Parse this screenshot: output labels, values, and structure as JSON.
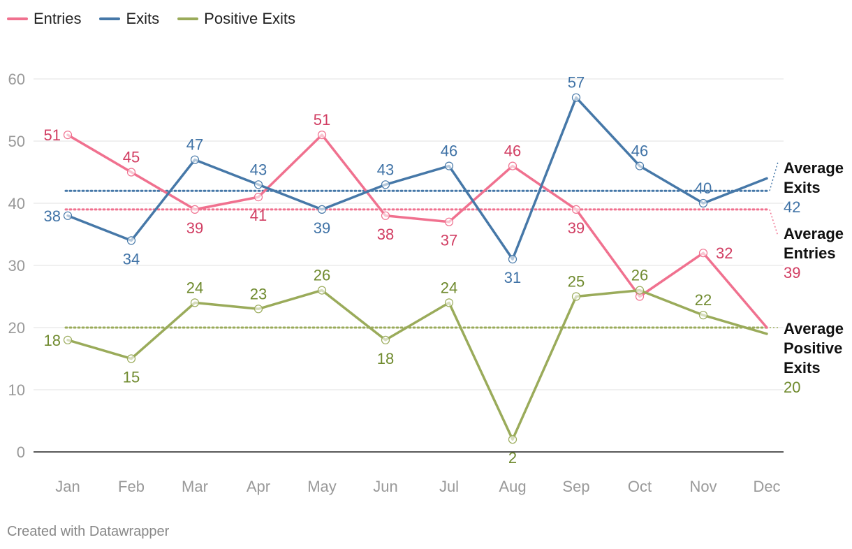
{
  "chart_data": {
    "type": "line",
    "title": "",
    "xlabel": "",
    "ylabel": "",
    "categories": [
      "Jan",
      "Feb",
      "Mar",
      "Apr",
      "May",
      "Jun",
      "Jul",
      "Aug",
      "Sep",
      "Oct",
      "Nov",
      "Dec"
    ],
    "ylim": [
      0,
      60
    ],
    "yticks": [
      0,
      10,
      20,
      30,
      40,
      50,
      60
    ],
    "grid": true,
    "legend_position": "top-left",
    "series": [
      {
        "key": "entries",
        "name": "Entries",
        "color": "#f0718f",
        "label_color": "#d13d62",
        "values": [
          51,
          45,
          39,
          41,
          51,
          38,
          37,
          46,
          39,
          25,
          32,
          20
        ]
      },
      {
        "key": "exits",
        "name": "Exits",
        "color": "#4678a8",
        "label_color": "#3f72a6",
        "values": [
          38,
          34,
          47,
          43,
          39,
          43,
          46,
          31,
          57,
          46,
          40,
          44
        ]
      },
      {
        "key": "positive",
        "name": "Positive Exits",
        "color": "#9aab5a",
        "label_color": "#6f8a2e",
        "values": [
          18,
          15,
          24,
          23,
          26,
          18,
          24,
          2,
          25,
          26,
          22,
          19
        ]
      }
    ],
    "data_labels": {
      "entries": [
        {
          "i": 0,
          "text": "51",
          "pos": "left"
        },
        {
          "i": 1,
          "text": "45",
          "pos": "above"
        },
        {
          "i": 2,
          "text": "39",
          "pos": "below"
        },
        {
          "i": 3,
          "text": "41",
          "pos": "below"
        },
        {
          "i": 4,
          "text": "51",
          "pos": "above"
        },
        {
          "i": 5,
          "text": "38",
          "pos": "below"
        },
        {
          "i": 6,
          "text": "37",
          "pos": "below"
        },
        {
          "i": 7,
          "text": "46",
          "pos": "above"
        },
        {
          "i": 8,
          "text": "39",
          "pos": "below"
        },
        {
          "i": 10,
          "text": "32",
          "pos": "right"
        }
      ],
      "exits": [
        {
          "i": 0,
          "text": "38",
          "pos": "left"
        },
        {
          "i": 1,
          "text": "34",
          "pos": "below"
        },
        {
          "i": 2,
          "text": "47",
          "pos": "above"
        },
        {
          "i": 3,
          "text": "43",
          "pos": "above"
        },
        {
          "i": 4,
          "text": "39",
          "pos": "below"
        },
        {
          "i": 5,
          "text": "43",
          "pos": "above"
        },
        {
          "i": 6,
          "text": "46",
          "pos": "above"
        },
        {
          "i": 7,
          "text": "31",
          "pos": "below"
        },
        {
          "i": 8,
          "text": "57",
          "pos": "above"
        },
        {
          "i": 9,
          "text": "46",
          "pos": "above"
        },
        {
          "i": 10,
          "text": "40",
          "pos": "above"
        }
      ],
      "positive": [
        {
          "i": 0,
          "text": "18",
          "pos": "left"
        },
        {
          "i": 1,
          "text": "15",
          "pos": "below"
        },
        {
          "i": 2,
          "text": "24",
          "pos": "above"
        },
        {
          "i": 3,
          "text": "23",
          "pos": "above"
        },
        {
          "i": 4,
          "text": "26",
          "pos": "above"
        },
        {
          "i": 5,
          "text": "18",
          "pos": "below"
        },
        {
          "i": 6,
          "text": "24",
          "pos": "above"
        },
        {
          "i": 7,
          "text": "2",
          "pos": "below"
        },
        {
          "i": 8,
          "text": "25",
          "pos": "above"
        },
        {
          "i": 9,
          "text": "26",
          "pos": "above"
        },
        {
          "i": 10,
          "text": "22",
          "pos": "above"
        }
      ]
    },
    "averages": [
      {
        "key": "exits",
        "lines": [
          "Average",
          "Exits"
        ],
        "value": 42,
        "value_text": "42",
        "color": "#4678a8",
        "text_color": "#3f72a6"
      },
      {
        "key": "entries",
        "lines": [
          "Average",
          "Entries"
        ],
        "value": 39,
        "value_text": "39",
        "color": "#f0718f",
        "text_color": "#d13d62"
      },
      {
        "key": "positive",
        "lines": [
          "Average",
          "Positive",
          "Exits"
        ],
        "value": 20,
        "value_text": "20",
        "color": "#9aab5a",
        "text_color": "#6f8a2e"
      }
    ]
  },
  "legend": {
    "items": [
      {
        "label": "Entries",
        "color": "#f0718f"
      },
      {
        "label": "Exits",
        "color": "#4678a8"
      },
      {
        "label": "Positive Exits",
        "color": "#9aab5a"
      }
    ]
  },
  "footer": {
    "credit": "Created with Datawrapper"
  }
}
